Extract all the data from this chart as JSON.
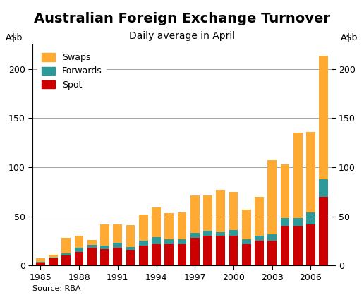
{
  "title": "Australian Foreign Exchange Turnover",
  "subtitle": "Daily average in April",
  "ylabel_left": "A$b",
  "ylabel_right": "A$b",
  "source": "Source: RBA",
  "years": [
    1985,
    1986,
    1987,
    1988,
    1989,
    1990,
    1991,
    1992,
    1993,
    1994,
    1995,
    1996,
    1997,
    1998,
    1999,
    2000,
    2001,
    2002,
    2003,
    2004,
    2005,
    2006,
    2007
  ],
  "spot": [
    3,
    7,
    10,
    14,
    18,
    17,
    18,
    16,
    20,
    22,
    22,
    22,
    28,
    30,
    30,
    30,
    22,
    25,
    25,
    40,
    40,
    42,
    70
  ],
  "forwards": [
    1,
    1,
    2,
    4,
    3,
    3,
    5,
    3,
    5,
    7,
    5,
    5,
    5,
    5,
    4,
    6,
    5,
    5,
    7,
    8,
    8,
    12,
    18
  ],
  "swaps": [
    3,
    3,
    16,
    12,
    5,
    22,
    19,
    22,
    27,
    30,
    26,
    27,
    38,
    36,
    43,
    39,
    30,
    40,
    75,
    55,
    87,
    82,
    125
  ],
  "ylim": [
    0,
    225
  ],
  "yticks": [
    0,
    50,
    100,
    150,
    200
  ],
  "bar_width": 0.7,
  "colors": {
    "spot": "#cc0000",
    "forwards": "#2e9999",
    "swaps": "#ffaa33"
  },
  "title_fontsize": 14,
  "subtitle_fontsize": 10,
  "axis_fontsize": 9,
  "tick_fontsize": 9,
  "legend_fontsize": 9,
  "source_fontsize": 8,
  "background_color": "#ffffff",
  "xtick_years": [
    1985,
    1988,
    1991,
    1994,
    1997,
    2000,
    2003,
    2006
  ]
}
